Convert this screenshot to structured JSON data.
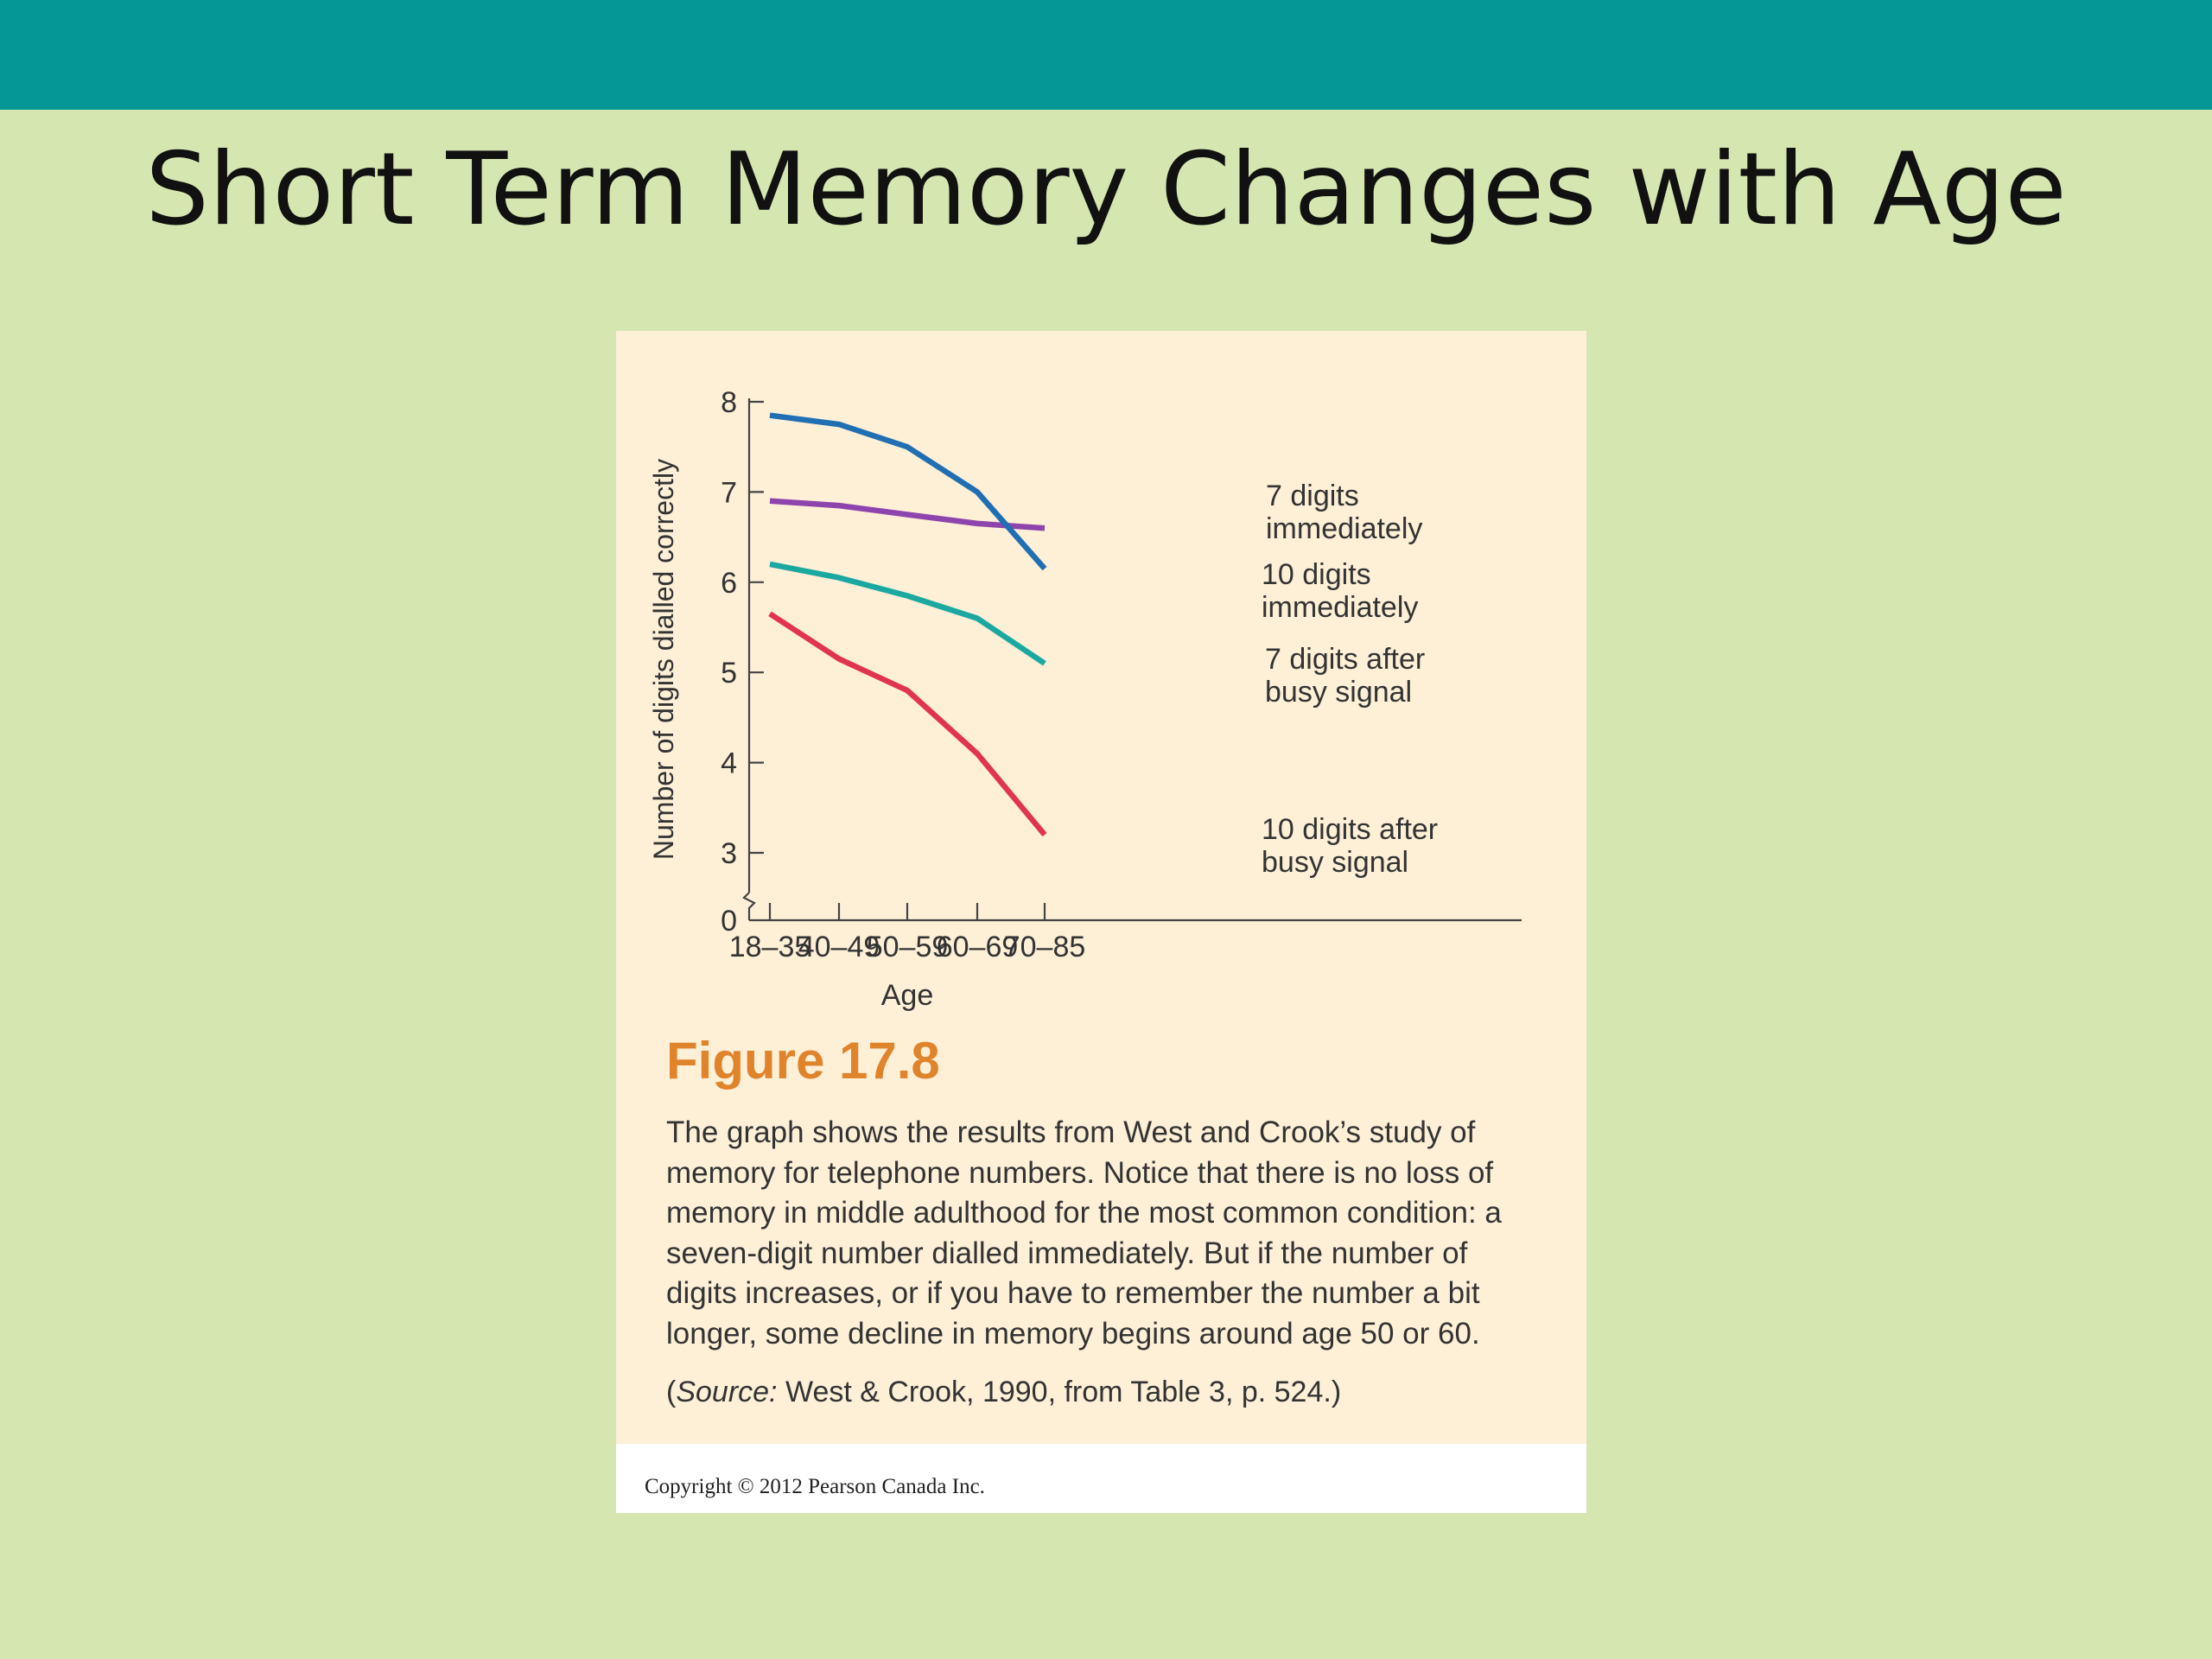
{
  "slide": {
    "title": "Short Term Memory Changes with Age",
    "colors": {
      "background": "#d5e6b0",
      "top_bar": "#049796",
      "figure_panel": "#feefd7",
      "figure_number": "#e0842c"
    }
  },
  "figure": {
    "number": "Figure 17.8",
    "caption": "The graph shows the results from West and Crook’s study of memory for telephone numbers. Notice that there is no loss of memory in middle adulthood for the most common condition: a seven-digit number dialled immediately. But if the number of digits increases, or if you have to remember the number a bit longer, some decline in memory begins around age 50 or 60.",
    "source_prefix": "(",
    "source_label": "Source:",
    "source_text": " West & Crook, 1990, from Table 3, p. 524.)",
    "copyright": "Copyright © 2012 Pearson Canada Inc."
  },
  "chart_data": {
    "type": "line",
    "xlabel": "Age",
    "ylabel": "Number of digits dialled correctly",
    "categories": [
      "18–35",
      "40–49",
      "50–59",
      "60–69",
      "70–85"
    ],
    "y_ticks": [
      0,
      3,
      4,
      5,
      6,
      7,
      8
    ],
    "ylim": [
      0,
      8
    ],
    "axis_break": true,
    "grid": false,
    "legend": "direct labels at right end of each line",
    "series": [
      {
        "name": "7 digits immediately",
        "label_lines": [
          "7 digits",
          "immediately"
        ],
        "color": "#8e44ad",
        "values": [
          6.9,
          6.85,
          6.75,
          6.65,
          6.6
        ]
      },
      {
        "name": "10 digits immediately",
        "label_lines": [
          "10 digits",
          "immediately"
        ],
        "color": "#1f6fb2",
        "values": [
          7.85,
          7.75,
          7.5,
          7.0,
          6.15
        ]
      },
      {
        "name": "7 digits after busy signal",
        "label_lines": [
          "7 digits after",
          "busy signal"
        ],
        "color": "#1aa8a0",
        "values": [
          6.2,
          6.05,
          5.85,
          5.6,
          5.1
        ]
      },
      {
        "name": "10 digits after busy signal",
        "label_lines": [
          "10 digits after",
          "busy signal"
        ],
        "color": "#e0354f",
        "values": [
          5.65,
          5.15,
          4.8,
          4.1,
          3.2
        ]
      }
    ]
  }
}
